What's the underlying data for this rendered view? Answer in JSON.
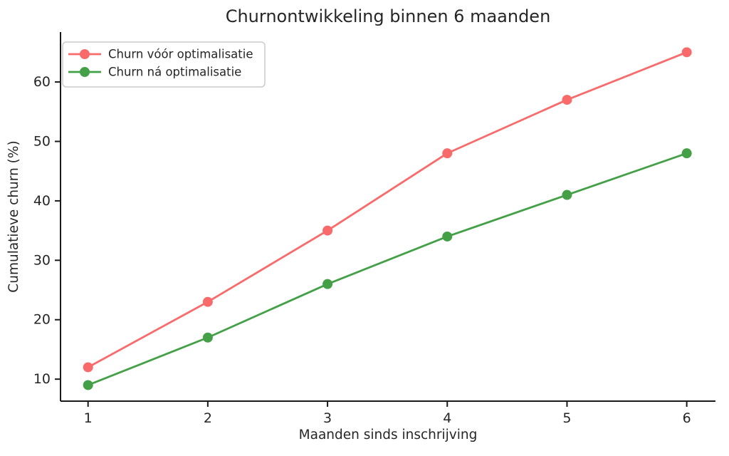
{
  "chart_data": {
    "type": "line",
    "title": "Churnontwikkeling binnen 6 maanden",
    "xlabel": "Maanden sinds inschrijving",
    "ylabel": "Cumulatieve churn (%)",
    "x": [
      1,
      2,
      3,
      4,
      5,
      6
    ],
    "series": [
      {
        "name": "Churn vóór optimalisatie",
        "color": "#f96b6b",
        "values": [
          12,
          23,
          35,
          48,
          57,
          65
        ]
      },
      {
        "name": "Churn ná optimalisatie",
        "color": "#43a047",
        "values": [
          9,
          17,
          26,
          34,
          41,
          48
        ]
      }
    ],
    "xticks": [
      1,
      2,
      3,
      4,
      5,
      6
    ],
    "yticks": [
      10,
      20,
      30,
      40,
      50,
      60
    ],
    "xlim": [
      0.77,
      6.24
    ],
    "ylim": [
      6.3,
      68.4
    ],
    "grid": false,
    "legend_position": "upper left",
    "spine_color": "#1a1a1a",
    "legend_border_color": "#cccccc"
  }
}
